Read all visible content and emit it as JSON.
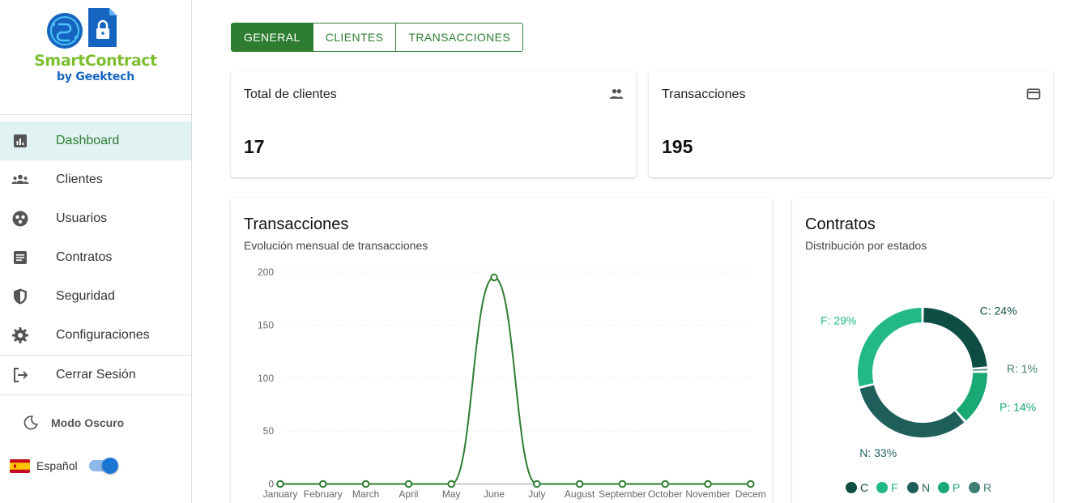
{
  "brand": {
    "name": "SmartContract",
    "byline": "by Geektech",
    "colors": {
      "green": "#7cbd2e",
      "blue": "#1565c0"
    }
  },
  "sidebar": {
    "items": [
      {
        "label": "Dashboard",
        "icon": "dashboard-icon",
        "active": true
      },
      {
        "label": "Clientes",
        "icon": "groups-icon",
        "active": false
      },
      {
        "label": "Usuarios",
        "icon": "users-circle-icon",
        "active": false
      },
      {
        "label": "Contratos",
        "icon": "document-icon",
        "active": false
      },
      {
        "label": "Seguridad",
        "icon": "shield-icon",
        "active": false
      },
      {
        "label": "Configuraciones",
        "icon": "gear-icon",
        "active": false
      },
      {
        "label": "Cerrar Sesión",
        "icon": "logout-icon",
        "active": false
      }
    ],
    "dark_mode_label": "Modo Oscuro",
    "language_label": "Español",
    "language_toggle_on": true
  },
  "tabs": [
    {
      "label": "GENERAL",
      "active": true
    },
    {
      "label": "CLIENTES",
      "active": false
    },
    {
      "label": "TRANSACCIONES",
      "active": false
    }
  ],
  "stats": [
    {
      "title": "Total de clientes",
      "value": "17",
      "icon": "people-icon"
    },
    {
      "title": "Transacciones",
      "value": "195",
      "icon": "credit-card-icon"
    }
  ],
  "transactions_card": {
    "title": "Transacciones",
    "subtitle": "Evolución mensual de transacciones"
  },
  "contracts_card": {
    "title": "Contratos",
    "subtitle": "Distribución por estados"
  },
  "chart_data": [
    {
      "type": "line",
      "categories": [
        "January",
        "February",
        "March",
        "April",
        "May",
        "June",
        "July",
        "August",
        "September",
        "October",
        "November",
        "Decem"
      ],
      "series": [
        {
          "values": [
            0,
            0,
            0,
            0,
            0,
            195,
            0,
            0,
            0,
            0,
            0,
            0
          ],
          "color": "#2e7d32"
        }
      ],
      "ylim": [
        0,
        200
      ],
      "yticks": [
        0,
        50,
        100,
        150,
        200
      ],
      "grid": true,
      "smooth": true
    },
    {
      "type": "pie",
      "donut": true,
      "slices": [
        {
          "name": "C",
          "value": 24,
          "label": "C: 24%",
          "color": "#0d4d44"
        },
        {
          "name": "R",
          "value": 1,
          "label": "R: 1%",
          "color": "#3f7d75"
        },
        {
          "name": "P",
          "value": 14,
          "label": "P: 14%",
          "color": "#1aa874"
        },
        {
          "name": "N",
          "value": 33,
          "label": "N: 33%",
          "color": "#1f5f5b"
        },
        {
          "name": "F",
          "value": 29,
          "label": "F: 29%",
          "color": "#22b888"
        }
      ],
      "legend_order": [
        "C",
        "F",
        "N",
        "P",
        "R"
      ],
      "legend_placement": "bottom"
    }
  ]
}
